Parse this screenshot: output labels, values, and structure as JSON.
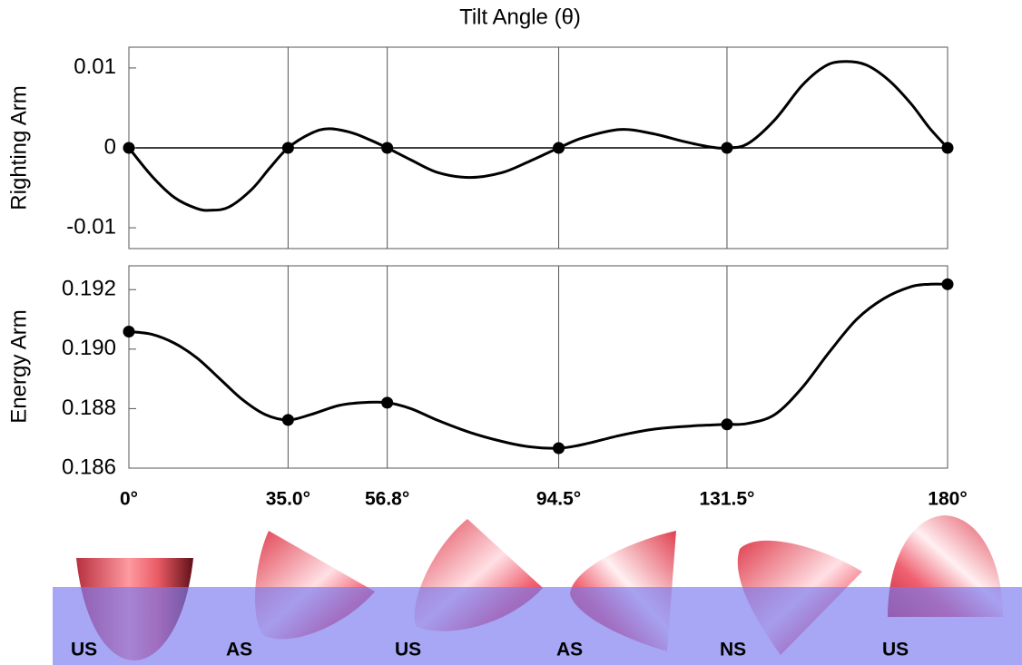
{
  "chart_data": [
    {
      "type": "line",
      "xlabel": "Tilt Angle (θ)",
      "ylabel": "Righting Arm",
      "xlim": [
        0,
        180
      ],
      "ylim": [
        -0.0126,
        0.0126
      ],
      "yticks": [
        -0.01,
        0,
        0.01
      ],
      "series": [
        {
          "mode": "line",
          "color": "#000000",
          "x": [
            0,
            5,
            10,
            15,
            18,
            22,
            27,
            31,
            35,
            40,
            44,
            49,
            53,
            56.8,
            62,
            68,
            75,
            82,
            88,
            94.5,
            100,
            108,
            115,
            122,
            128,
            131.5,
            136,
            142,
            148,
            153,
            157,
            162,
            167,
            172,
            176,
            180
          ],
          "values": [
            0,
            -0.0035,
            -0.0062,
            -0.0076,
            -0.0078,
            -0.0074,
            -0.0052,
            -0.0025,
            0,
            0.0018,
            0.0024,
            0.0019,
            0.001,
            0,
            -0.0015,
            -0.0031,
            -0.0037,
            -0.0031,
            -0.0017,
            0,
            0.0013,
            0.0023,
            0.0018,
            0.0008,
            0.0001,
            0,
            0.0005,
            0.0035,
            0.0078,
            0.0102,
            0.0108,
            0.0104,
            0.0085,
            0.0055,
            0.0025,
            0
          ]
        },
        {
          "mode": "markers",
          "color": "#000000",
          "x": [
            0,
            35,
            56.8,
            94.5,
            131.5,
            180
          ],
          "values": [
            0,
            0,
            0,
            0,
            0,
            0
          ]
        }
      ]
    },
    {
      "type": "line",
      "ylabel": "Energy Arm",
      "xlim": [
        0,
        180
      ],
      "ylim": [
        0.186,
        0.1928
      ],
      "xticks": [
        {
          "value": 0,
          "label": "0°"
        },
        {
          "value": 35,
          "label": "35.0°"
        },
        {
          "value": 56.8,
          "label": "56.8°"
        },
        {
          "value": 94.5,
          "label": "94.5°"
        },
        {
          "value": 131.5,
          "label": "131.5°"
        },
        {
          "value": 180,
          "label": "180°"
        }
      ],
      "yticks": [
        0.186,
        0.188,
        {
          "value": 0.19,
          "label": "0.190"
        },
        0.192
      ],
      "series": [
        {
          "mode": "line",
          "color": "#000000",
          "x": [
            0,
            5,
            10,
            15,
            20,
            25,
            30,
            35,
            40,
            46,
            51,
            56.8,
            62,
            68,
            75,
            82,
            88,
            94.5,
            100,
            108,
            115,
            122,
            128,
            131.5,
            136,
            142,
            148,
            154,
            160,
            166,
            172,
            176,
            180
          ],
          "values": [
            0.19059,
            0.1905,
            0.1902,
            0.1897,
            0.189,
            0.1883,
            0.1878,
            0.18762,
            0.1878,
            0.1881,
            0.1882,
            0.1882,
            0.188,
            0.1876,
            0.1872,
            0.1869,
            0.18672,
            0.18667,
            0.1868,
            0.1871,
            0.1873,
            0.1874,
            0.18745,
            0.18747,
            0.1875,
            0.1878,
            0.1887,
            0.1899,
            0.191,
            0.1917,
            0.1921,
            0.19218,
            0.19218
          ]
        },
        {
          "mode": "markers",
          "color": "#000000",
          "x": [
            0,
            35,
            56.8,
            94.5,
            131.5,
            180
          ],
          "values": [
            0.19059,
            0.18762,
            0.1882,
            0.18667,
            0.18747,
            0.19218
          ]
        }
      ]
    }
  ],
  "shapes": {
    "labels": [
      "US",
      "AS",
      "US",
      "AS",
      "NS",
      "US"
    ]
  }
}
